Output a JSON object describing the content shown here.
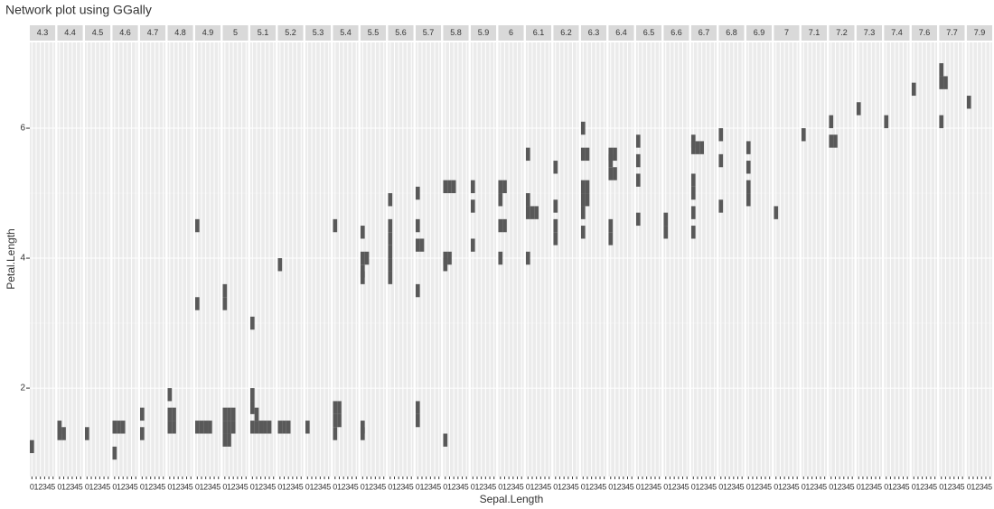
{
  "chart_data": {
    "type": "tile",
    "title": "Network plot using GGally",
    "x_label": "Sepal.Length",
    "y_label": "Petal.Length",
    "ylim": [
      0.64,
      7.32
    ],
    "yticks": [
      2,
      4,
      6
    ],
    "x_categories": [
      0,
      1,
      2,
      3,
      4,
      5
    ],
    "color": "#595959",
    "grid": true,
    "facets": [
      {
        "label": "4.3",
        "tiles": [
          {
            "x": 0,
            "y": 1.1
          }
        ]
      },
      {
        "label": "4.4",
        "tiles": [
          {
            "x": 0,
            "y": 1.4
          },
          {
            "x": 0,
            "y": 1.3
          },
          {
            "x": 1,
            "y": 1.3
          }
        ]
      },
      {
        "label": "4.5",
        "tiles": [
          {
            "x": 0,
            "y": 1.3
          }
        ]
      },
      {
        "label": "4.6",
        "tiles": [
          {
            "x": 0,
            "y": 1.4
          },
          {
            "x": 1,
            "y": 1.4
          },
          {
            "x": 2,
            "y": 1.4
          },
          {
            "x": 0,
            "y": 1.0
          }
        ]
      },
      {
        "label": "4.7",
        "tiles": [
          {
            "x": 0,
            "y": 1.6
          },
          {
            "x": 0,
            "y": 1.3
          }
        ]
      },
      {
        "label": "4.8",
        "tiles": [
          {
            "x": 0,
            "y": 1.9
          },
          {
            "x": 0,
            "y": 1.6
          },
          {
            "x": 0,
            "y": 1.4
          },
          {
            "x": 1,
            "y": 1.6
          },
          {
            "x": 1,
            "y": 1.4
          }
        ]
      },
      {
        "label": "4.9",
        "tiles": [
          {
            "x": 0,
            "y": 4.5
          },
          {
            "x": 0,
            "y": 3.3
          },
          {
            "x": 0,
            "y": 1.4
          },
          {
            "x": 1,
            "y": 1.4
          },
          {
            "x": 2,
            "y": 1.4
          },
          {
            "x": 3,
            "y": 1.4
          }
        ]
      },
      {
        "label": "5",
        "tiles": [
          {
            "x": 0,
            "y": 3.5
          },
          {
            "x": 0,
            "y": 3.3
          },
          {
            "x": 0,
            "y": 1.6
          },
          {
            "x": 0,
            "y": 1.4
          },
          {
            "x": 0,
            "y": 1.2
          },
          {
            "x": 1,
            "y": 1.6
          },
          {
            "x": 1,
            "y": 1.4
          },
          {
            "x": 1,
            "y": 1.2
          },
          {
            "x": 2,
            "y": 1.6
          },
          {
            "x": 2,
            "y": 1.4
          }
        ]
      },
      {
        "label": "5.1",
        "tiles": [
          {
            "x": 0,
            "y": 3.0
          },
          {
            "x": 0,
            "y": 1.9
          },
          {
            "x": 0,
            "y": 1.7
          },
          {
            "x": 1,
            "y": 1.6
          },
          {
            "x": 0,
            "y": 1.4
          },
          {
            "x": 1,
            "y": 1.4
          },
          {
            "x": 2,
            "y": 1.4
          },
          {
            "x": 3,
            "y": 1.4
          },
          {
            "x": 4,
            "y": 1.4
          }
        ]
      },
      {
        "label": "5.2",
        "tiles": [
          {
            "x": 0,
            "y": 3.9
          },
          {
            "x": 0,
            "y": 1.4
          },
          {
            "x": 1,
            "y": 1.4
          },
          {
            "x": 2,
            "y": 1.4
          }
        ]
      },
      {
        "label": "5.3",
        "tiles": [
          {
            "x": 0,
            "y": 1.4
          }
        ]
      },
      {
        "label": "5.4",
        "tiles": [
          {
            "x": 0,
            "y": 4.5
          },
          {
            "x": 0,
            "y": 1.7
          },
          {
            "x": 0,
            "y": 1.5
          },
          {
            "x": 1,
            "y": 1.7
          },
          {
            "x": 1,
            "y": 1.5
          },
          {
            "x": 0,
            "y": 1.3
          }
        ]
      },
      {
        "label": "5.5",
        "tiles": [
          {
            "x": 0,
            "y": 4.4
          },
          {
            "x": 0,
            "y": 4.0
          },
          {
            "x": 1,
            "y": 4.0
          },
          {
            "x": 0,
            "y": 3.8
          },
          {
            "x": 0,
            "y": 3.7
          },
          {
            "x": 0,
            "y": 1.4
          },
          {
            "x": 0,
            "y": 1.3
          }
        ]
      },
      {
        "label": "5.6",
        "tiles": [
          {
            "x": 0,
            "y": 4.9
          },
          {
            "x": 0,
            "y": 4.5
          },
          {
            "x": 0,
            "y": 4.3
          },
          {
            "x": 0,
            "y": 4.1
          },
          {
            "x": 0,
            "y": 3.9
          },
          {
            "x": 0,
            "y": 3.7
          }
        ]
      },
      {
        "label": "5.7",
        "tiles": [
          {
            "x": 0,
            "y": 5.0
          },
          {
            "x": 0,
            "y": 4.5
          },
          {
            "x": 0,
            "y": 4.2
          },
          {
            "x": 1,
            "y": 4.2
          },
          {
            "x": 0,
            "y": 3.5
          },
          {
            "x": 0,
            "y": 1.7
          },
          {
            "x": 0,
            "y": 1.5
          }
        ]
      },
      {
        "label": "5.8",
        "tiles": [
          {
            "x": 0,
            "y": 5.1
          },
          {
            "x": 1,
            "y": 5.1
          },
          {
            "x": 2,
            "y": 5.1
          },
          {
            "x": 0,
            "y": 4.0
          },
          {
            "x": 1,
            "y": 4.0
          },
          {
            "x": 0,
            "y": 3.9
          },
          {
            "x": 0,
            "y": 1.2
          }
        ]
      },
      {
        "label": "5.9",
        "tiles": [
          {
            "x": 0,
            "y": 5.1
          },
          {
            "x": 0,
            "y": 4.8
          },
          {
            "x": 0,
            "y": 4.2
          }
        ]
      },
      {
        "label": "6",
        "tiles": [
          {
            "x": 0,
            "y": 5.1
          },
          {
            "x": 1,
            "y": 5.1
          },
          {
            "x": 0,
            "y": 4.9
          },
          {
            "x": 0,
            "y": 4.5
          },
          {
            "x": 1,
            "y": 4.5
          },
          {
            "x": 0,
            "y": 4.0
          }
        ]
      },
      {
        "label": "6.1",
        "tiles": [
          {
            "x": 0,
            "y": 5.6
          },
          {
            "x": 0,
            "y": 4.9
          },
          {
            "x": 0,
            "y": 4.7
          },
          {
            "x": 1,
            "y": 4.7
          },
          {
            "x": 2,
            "y": 4.7
          },
          {
            "x": 0,
            "y": 4.0
          }
        ]
      },
      {
        "label": "6.2",
        "tiles": [
          {
            "x": 0,
            "y": 5.4
          },
          {
            "x": 0,
            "y": 4.8
          },
          {
            "x": 0,
            "y": 4.5
          },
          {
            "x": 0,
            "y": 4.3
          }
        ]
      },
      {
        "label": "6.3",
        "tiles": [
          {
            "x": 0,
            "y": 6.0
          },
          {
            "x": 0,
            "y": 5.6
          },
          {
            "x": 1,
            "y": 5.6
          },
          {
            "x": 0,
            "y": 5.1
          },
          {
            "x": 1,
            "y": 5.1
          },
          {
            "x": 0,
            "y": 4.9
          },
          {
            "x": 1,
            "y": 4.9
          },
          {
            "x": 0,
            "y": 4.7
          },
          {
            "x": 0,
            "y": 4.4
          }
        ]
      },
      {
        "label": "6.4",
        "tiles": [
          {
            "x": 0,
            "y": 5.6
          },
          {
            "x": 1,
            "y": 5.6
          },
          {
            "x": 0,
            "y": 5.5
          },
          {
            "x": 0,
            "y": 5.3
          },
          {
            "x": 1,
            "y": 5.3
          },
          {
            "x": 0,
            "y": 4.5
          },
          {
            "x": 0,
            "y": 4.3
          }
        ]
      },
      {
        "label": "6.5",
        "tiles": [
          {
            "x": 0,
            "y": 5.8
          },
          {
            "x": 0,
            "y": 5.5
          },
          {
            "x": 0,
            "y": 5.2
          },
          {
            "x": 0,
            "y": 4.6
          }
        ]
      },
      {
        "label": "6.6",
        "tiles": [
          {
            "x": 0,
            "y": 4.6
          },
          {
            "x": 0,
            "y": 4.4
          }
        ]
      },
      {
        "label": "6.7",
        "tiles": [
          {
            "x": 0,
            "y": 5.8
          },
          {
            "x": 0,
            "y": 5.7
          },
          {
            "x": 1,
            "y": 5.7
          },
          {
            "x": 2,
            "y": 5.7
          },
          {
            "x": 0,
            "y": 5.2
          },
          {
            "x": 0,
            "y": 5.0
          },
          {
            "x": 0,
            "y": 4.7
          },
          {
            "x": 0,
            "y": 4.4
          }
        ]
      },
      {
        "label": "6.8",
        "tiles": [
          {
            "x": 0,
            "y": 5.9
          },
          {
            "x": 0,
            "y": 5.5
          },
          {
            "x": 0,
            "y": 4.8
          }
        ]
      },
      {
        "label": "6.9",
        "tiles": [
          {
            "x": 0,
            "y": 5.7
          },
          {
            "x": 0,
            "y": 5.4
          },
          {
            "x": 0,
            "y": 5.1
          },
          {
            "x": 0,
            "y": 4.9
          }
        ]
      },
      {
        "label": "7",
        "tiles": [
          {
            "x": 0,
            "y": 4.7
          }
        ]
      },
      {
        "label": "7.1",
        "tiles": [
          {
            "x": 0,
            "y": 5.9
          }
        ]
      },
      {
        "label": "7.2",
        "tiles": [
          {
            "x": 0,
            "y": 6.1
          },
          {
            "x": 0,
            "y": 5.8
          },
          {
            "x": 1,
            "y": 5.8
          }
        ]
      },
      {
        "label": "7.3",
        "tiles": [
          {
            "x": 0,
            "y": 6.3
          }
        ]
      },
      {
        "label": "7.4",
        "tiles": [
          {
            "x": 0,
            "y": 6.1
          }
        ]
      },
      {
        "label": "7.6",
        "tiles": [
          {
            "x": 0,
            "y": 6.6
          }
        ]
      },
      {
        "label": "7.7",
        "tiles": [
          {
            "x": 0,
            "y": 6.9
          },
          {
            "x": 0,
            "y": 6.7
          },
          {
            "x": 1,
            "y": 6.7
          },
          {
            "x": 0,
            "y": 6.1
          }
        ]
      },
      {
        "label": "7.9",
        "tiles": [
          {
            "x": 0,
            "y": 6.4
          }
        ]
      }
    ]
  }
}
